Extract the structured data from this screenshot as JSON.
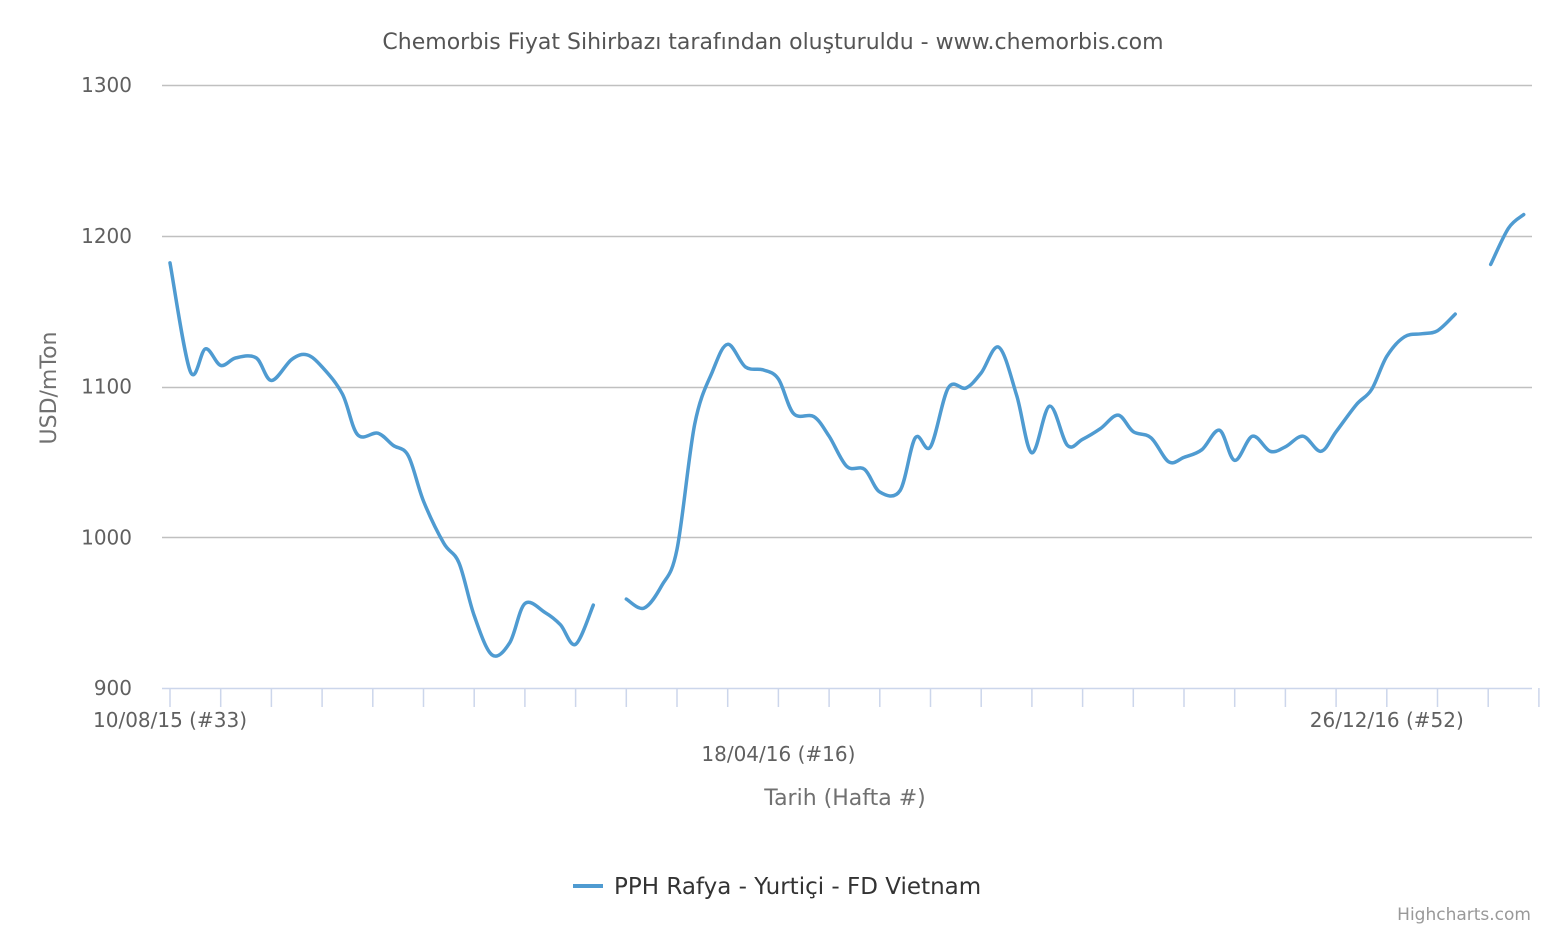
{
  "chart_data": {
    "type": "line",
    "title": "Chemorbis Fiyat Sihirbazı tarafından oluşturuldu - www.chemorbis.com",
    "xlabel": "Tarih (Hafta #)",
    "ylabel": "USD/mTon",
    "ylim": [
      900,
      1300
    ],
    "yticks": [
      900,
      1000,
      1100,
      1200,
      1300
    ],
    "grid": true,
    "legend_position": "bottom-center",
    "credit": "Highcharts.com",
    "line_color": "#4f9bd1",
    "x_tick_count": 28,
    "x_tick_labels": [
      {
        "index": 0,
        "text": "10/08/15 (#33)",
        "row": 0
      },
      {
        "index": 12,
        "text": "18/04/16 (#16)",
        "row": 1
      },
      {
        "index": 24,
        "text": "26/12/16 (#52)",
        "row": 0
      }
    ],
    "series": [
      {
        "name": "PPH Rafya - Yurtiçi - FD Vietnam",
        "points": [
          [
            0.0,
            1182
          ],
          [
            0.4,
            1110
          ],
          [
            0.7,
            1125
          ],
          [
            1.0,
            1114
          ],
          [
            1.3,
            1119
          ],
          [
            1.7,
            1119
          ],
          [
            2.0,
            1104
          ],
          [
            2.4,
            1118
          ],
          [
            2.7,
            1121
          ],
          [
            3.0,
            1113
          ],
          [
            3.4,
            1095
          ],
          [
            3.7,
            1068
          ],
          [
            4.1,
            1069
          ],
          [
            4.4,
            1061
          ],
          [
            4.7,
            1054
          ],
          [
            5.0,
            1024
          ],
          [
            5.4,
            996
          ],
          [
            5.7,
            983
          ],
          [
            6.0,
            948
          ],
          [
            6.35,
            922
          ],
          [
            6.7,
            930
          ],
          [
            7.0,
            956
          ],
          [
            7.4,
            950
          ],
          [
            7.7,
            942
          ],
          [
            8.0,
            929
          ],
          [
            8.35,
            955
          ],
          null,
          [
            9.0,
            959
          ],
          [
            9.35,
            953
          ],
          [
            9.7,
            968
          ],
          [
            10.0,
            992
          ],
          [
            10.35,
            1075
          ],
          [
            10.7,
            1110
          ],
          [
            11.0,
            1128
          ],
          [
            11.35,
            1113
          ],
          [
            11.7,
            1111
          ],
          [
            12.0,
            1105
          ],
          [
            12.3,
            1082
          ],
          [
            12.7,
            1080
          ],
          [
            13.0,
            1067
          ],
          [
            13.35,
            1047
          ],
          [
            13.7,
            1045
          ],
          [
            14.0,
            1030
          ],
          [
            14.4,
            1031
          ],
          [
            14.7,
            1066
          ],
          [
            15.0,
            1060
          ],
          [
            15.35,
            1099
          ],
          [
            15.7,
            1099
          ],
          [
            16.0,
            1109
          ],
          [
            16.35,
            1126
          ],
          [
            16.7,
            1094
          ],
          [
            17.0,
            1056
          ],
          [
            17.35,
            1087
          ],
          [
            17.7,
            1061
          ],
          [
            18.0,
            1065
          ],
          [
            18.35,
            1072
          ],
          [
            18.7,
            1081
          ],
          [
            19.0,
            1070
          ],
          [
            19.35,
            1066
          ],
          [
            19.7,
            1050
          ],
          [
            20.0,
            1053
          ],
          [
            20.35,
            1058
          ],
          [
            20.7,
            1071
          ],
          [
            21.0,
            1051
          ],
          [
            21.35,
            1067
          ],
          [
            21.7,
            1057
          ],
          [
            22.0,
            1060
          ],
          [
            22.35,
            1067
          ],
          [
            22.7,
            1057
          ],
          [
            23.0,
            1070
          ],
          [
            23.4,
            1088
          ],
          [
            23.7,
            1098
          ],
          [
            24.0,
            1120
          ],
          [
            24.35,
            1133
          ],
          [
            24.7,
            1135
          ],
          [
            25.0,
            1137
          ],
          [
            25.35,
            1148
          ],
          null,
          [
            26.05,
            1181
          ],
          [
            26.4,
            1205
          ],
          [
            26.7,
            1214
          ]
        ]
      }
    ]
  }
}
